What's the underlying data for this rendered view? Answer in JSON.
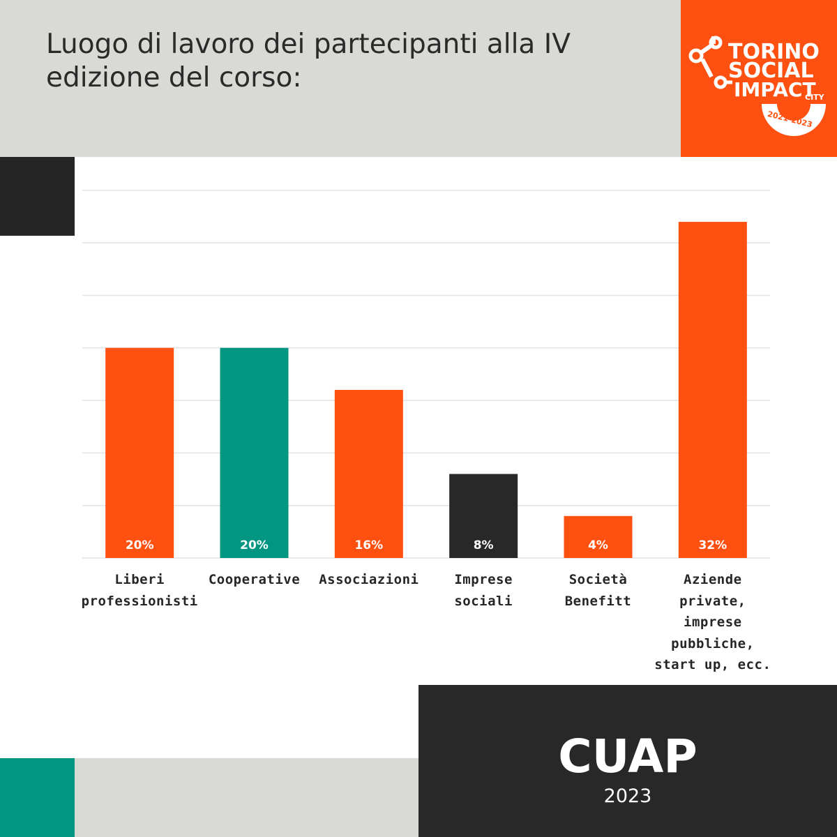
{
  "header": {
    "title": "Luogo di lavoro dei partecipanti alla IV edizione del corso:"
  },
  "logo": {
    "lines": [
      "TORINO",
      "SOCIAL",
      "IMPACT"
    ],
    "sub": "CITY",
    "years": "2021-2023"
  },
  "footer": {
    "title": "CUAP",
    "year": "2023"
  },
  "colors": {
    "orange": "#fe5010",
    "teal": "#009682",
    "dark": "#282828",
    "gray": "#d9dad6"
  },
  "chart_data": {
    "type": "bar",
    "title": "Luogo di lavoro dei partecipanti alla IV edizione del corso:",
    "xlabel": "",
    "ylabel": "",
    "ylim": [
      0,
      35
    ],
    "grid": true,
    "categories": [
      "Liberi professionisti",
      "Cooperative",
      "Associazioni",
      "Imprese sociali",
      "Società Benefitt",
      "Aziende private, imprese pubbliche, start up, ecc."
    ],
    "values": [
      20,
      20,
      16,
      8,
      4,
      32
    ],
    "data_labels": [
      "20%",
      "20%",
      "16%",
      "8%",
      "4%",
      "32%"
    ],
    "bar_colors": [
      "#fe5010",
      "#009682",
      "#fe5010",
      "#282828",
      "#fe5010",
      "#fe5010"
    ]
  }
}
